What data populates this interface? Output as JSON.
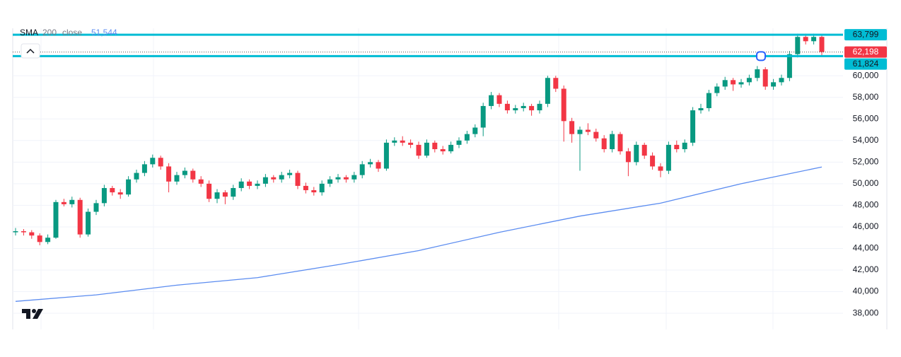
{
  "chart_data": {
    "type": "candlestick",
    "indicator": {
      "name": "SMA",
      "length": 200,
      "source": "close",
      "last": {
        "value": 51544,
        "label": "51,544"
      },
      "color": "#5b8cf0",
      "x": [
        0,
        10,
        20,
        30,
        40,
        50,
        60,
        70,
        80,
        90,
        100
      ],
      "values": [
        39100,
        39700,
        40600,
        41300,
        42500,
        43800,
        45500,
        47000,
        48200,
        50000,
        51544
      ]
    },
    "up_color": "#089981",
    "down_color": "#f23645",
    "ylim": [
      36500,
      64400
    ],
    "yticks": [
      {
        "value": 38000,
        "label": "38,000"
      },
      {
        "value": 40000,
        "label": "40,000"
      },
      {
        "value": 42000,
        "label": "42,000"
      },
      {
        "value": 44000,
        "label": "44,000"
      },
      {
        "value": 46000,
        "label": "46,000"
      },
      {
        "value": 48000,
        "label": "48,000"
      },
      {
        "value": 50000,
        "label": "50,000"
      },
      {
        "value": 52000,
        "label": "52,000"
      },
      {
        "value": 54000,
        "label": "54,000"
      },
      {
        "value": 56000,
        "label": "56,000"
      },
      {
        "value": 58000,
        "label": "58,000"
      },
      {
        "value": 60000,
        "label": "60,000"
      }
    ],
    "levels": [
      {
        "value": 63799,
        "label": "63,799",
        "color": "#00bcd4"
      },
      {
        "value": 61824,
        "label": "61,824",
        "color": "#00bcd4"
      }
    ],
    "last_price": {
      "value": 62198,
      "label": "62,198",
      "color": "#f23645"
    },
    "ohlc": [
      [
        45500,
        45900,
        45200,
        45600
      ],
      [
        45600,
        45800,
        45200,
        45500
      ],
      [
        45500,
        45700,
        44900,
        45200
      ],
      [
        45200,
        45400,
        44300,
        44600
      ],
      [
        44600,
        45300,
        44400,
        45000
      ],
      [
        45000,
        48500,
        44900,
        48300
      ],
      [
        48300,
        48600,
        47900,
        48100
      ],
      [
        48100,
        48800,
        47800,
        48500
      ],
      [
        48500,
        48700,
        45000,
        45300
      ],
      [
        45300,
        47700,
        45100,
        47400
      ],
      [
        47400,
        48500,
        47100,
        48200
      ],
      [
        48200,
        49900,
        47900,
        49600
      ],
      [
        49600,
        49800,
        48900,
        49200
      ],
      [
        49200,
        49500,
        48600,
        49000
      ],
      [
        49000,
        50700,
        48800,
        50400
      ],
      [
        50400,
        51300,
        50100,
        51000
      ],
      [
        51000,
        52100,
        50700,
        51800
      ],
      [
        51800,
        52700,
        51500,
        52400
      ],
      [
        52400,
        52600,
        51300,
        51600
      ],
      [
        51600,
        51900,
        49200,
        50200
      ],
      [
        50200,
        51100,
        49900,
        50800
      ],
      [
        50800,
        51500,
        50500,
        51200
      ],
      [
        51200,
        51400,
        50100,
        50400
      ],
      [
        50400,
        50700,
        49700,
        50000
      ],
      [
        50000,
        50300,
        48300,
        48600
      ],
      [
        48600,
        49500,
        48200,
        49200
      ],
      [
        49200,
        49400,
        48100,
        48800
      ],
      [
        48800,
        49900,
        48500,
        49600
      ],
      [
        49600,
        50500,
        49300,
        50200
      ],
      [
        50200,
        50400,
        49500,
        49800
      ],
      [
        49800,
        50300,
        49500,
        50000
      ],
      [
        50000,
        50900,
        49700,
        50600
      ],
      [
        50600,
        50800,
        50100,
        50400
      ],
      [
        50400,
        51100,
        50100,
        50800
      ],
      [
        50800,
        51300,
        50500,
        51000
      ],
      [
        51000,
        51200,
        49500,
        49800
      ],
      [
        49800,
        50100,
        49100,
        49400
      ],
      [
        49400,
        49700,
        48900,
        49200
      ],
      [
        49200,
        50300,
        48900,
        50000
      ],
      [
        50000,
        50700,
        49700,
        50400
      ],
      [
        50400,
        50900,
        50100,
        50600
      ],
      [
        50600,
        50800,
        50100,
        50400
      ],
      [
        50400,
        51100,
        50100,
        50800
      ],
      [
        50800,
        52100,
        50500,
        51800
      ],
      [
        51800,
        52300,
        51500,
        52000
      ],
      [
        52000,
        52200,
        51100,
        51400
      ],
      [
        51400,
        54100,
        51200,
        53800
      ],
      [
        53800,
        54300,
        53500,
        54000
      ],
      [
        54000,
        54400,
        53500,
        53800
      ],
      [
        53800,
        54100,
        53300,
        53600
      ],
      [
        53600,
        53900,
        52300,
        52600
      ],
      [
        52600,
        54100,
        52400,
        53800
      ],
      [
        53800,
        54000,
        52900,
        53200
      ],
      [
        53200,
        53500,
        52700,
        53000
      ],
      [
        53000,
        53900,
        52800,
        53600
      ],
      [
        53600,
        54300,
        53300,
        54000
      ],
      [
        54000,
        54900,
        53700,
        54600
      ],
      [
        54600,
        55500,
        54300,
        55200
      ],
      [
        55200,
        57500,
        54400,
        57200
      ],
      [
        57200,
        58500,
        56900,
        58200
      ],
      [
        58200,
        58400,
        57100,
        57400
      ],
      [
        57400,
        57700,
        56500,
        56800
      ],
      [
        56800,
        57300,
        56500,
        57000
      ],
      [
        57000,
        57500,
        56700,
        57200
      ],
      [
        57200,
        57400,
        56300,
        56800
      ],
      [
        56800,
        57700,
        56500,
        57400
      ],
      [
        57400,
        60000,
        57100,
        59800
      ],
      [
        59800,
        60000,
        58500,
        58800
      ],
      [
        58800,
        59100,
        53900,
        55800
      ],
      [
        55800,
        56100,
        53800,
        54600
      ],
      [
        54600,
        55300,
        51200,
        55000
      ],
      [
        55000,
        55600,
        54500,
        54800
      ],
      [
        54800,
        55100,
        53900,
        54200
      ],
      [
        54200,
        54500,
        52900,
        53200
      ],
      [
        53200,
        54900,
        52900,
        54600
      ],
      [
        54600,
        54800,
        52700,
        53000
      ],
      [
        53000,
        53300,
        50700,
        52000
      ],
      [
        52000,
        53900,
        51700,
        53600
      ],
      [
        53600,
        53800,
        52300,
        52600
      ],
      [
        52600,
        52900,
        51300,
        51600
      ],
      [
        51600,
        51900,
        50600,
        51200
      ],
      [
        51200,
        53900,
        50900,
        53600
      ],
      [
        53600,
        54000,
        52900,
        53200
      ],
      [
        53200,
        54100,
        52900,
        53800
      ],
      [
        53800,
        57100,
        53500,
        56800
      ],
      [
        56800,
        57400,
        56500,
        57000
      ],
      [
        57000,
        58700,
        56700,
        58400
      ],
      [
        58400,
        59300,
        58100,
        59000
      ],
      [
        59000,
        59900,
        58700,
        59600
      ],
      [
        59600,
        59800,
        58600,
        59200
      ],
      [
        59200,
        59700,
        58900,
        59400
      ],
      [
        59400,
        60100,
        59100,
        59800
      ],
      [
        59800,
        60900,
        59500,
        60600
      ],
      [
        60600,
        60800,
        58700,
        59000
      ],
      [
        59000,
        59700,
        58700,
        59400
      ],
      [
        59400,
        60100,
        59100,
        59800
      ],
      [
        59800,
        62300,
        59500,
        62000
      ],
      [
        62000,
        63900,
        61700,
        63600
      ],
      [
        63600,
        63900,
        62900,
        63200
      ],
      [
        63200,
        63900,
        62900,
        63600
      ],
      [
        63600,
        63800,
        61900,
        62198
      ]
    ],
    "grid": true
  }
}
